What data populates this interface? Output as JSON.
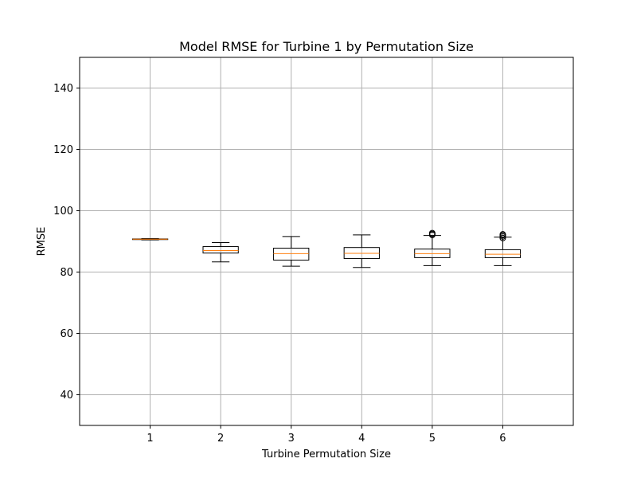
{
  "chart_data": {
    "type": "box",
    "title": "Model RMSE for Turbine 1 by Permutation Size",
    "xlabel": "Turbine Permutation Size",
    "ylabel": "RMSE",
    "categories": [
      "1",
      "2",
      "3",
      "4",
      "5",
      "6"
    ],
    "ylim": [
      30,
      150
    ],
    "yticks": [
      40,
      60,
      80,
      100,
      120,
      140
    ],
    "grid": true,
    "boxes": [
      {
        "category": "1",
        "whisker_low": 90.5,
        "q1": 90.6,
        "median": 90.7,
        "q3": 90.8,
        "whisker_high": 90.9,
        "outliers": []
      },
      {
        "category": "2",
        "whisker_low": 83.3,
        "q1": 86.2,
        "median": 87.0,
        "q3": 88.3,
        "whisker_high": 89.6,
        "outliers": []
      },
      {
        "category": "3",
        "whisker_low": 81.9,
        "q1": 83.9,
        "median": 86.0,
        "q3": 87.8,
        "whisker_high": 91.6,
        "outliers": []
      },
      {
        "category": "4",
        "whisker_low": 81.5,
        "q1": 84.4,
        "median": 86.1,
        "q3": 88.0,
        "whisker_high": 92.1,
        "outliers": []
      },
      {
        "category": "5",
        "whisker_low": 82.1,
        "q1": 84.7,
        "median": 86.0,
        "q3": 87.5,
        "whisker_high": 91.9,
        "outliers": [
          92.1,
          92.4,
          92.7
        ]
      },
      {
        "category": "6",
        "whisker_low": 82.1,
        "q1": 84.7,
        "median": 85.8,
        "q3": 87.3,
        "whisker_high": 91.4,
        "outliers": [
          91.1,
          91.6,
          92.0,
          92.3
        ]
      }
    ],
    "colors": {
      "box": "#000000",
      "median": "#ff7f0e",
      "grid": "#b0b0b0",
      "axes": "#000000"
    }
  }
}
